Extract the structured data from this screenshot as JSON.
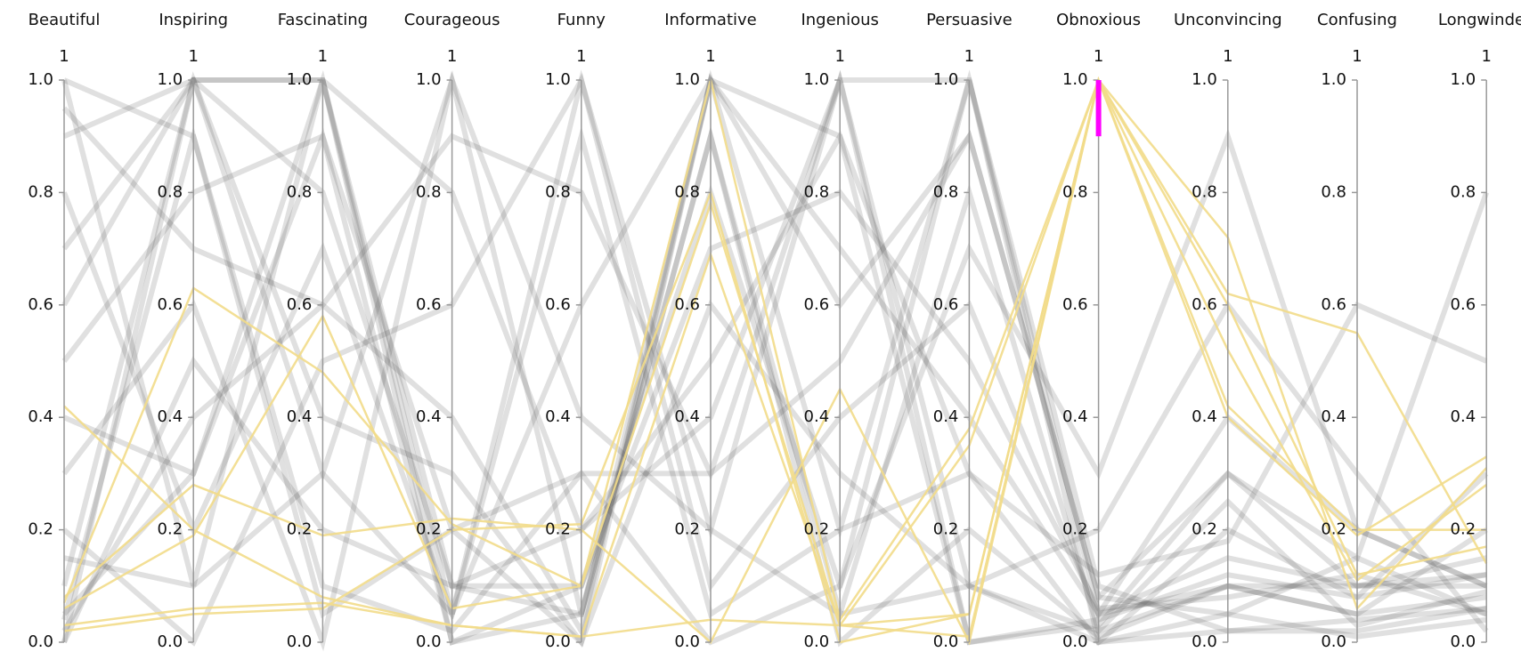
{
  "chart_data": {
    "type": "parallel",
    "dimensions": [
      {
        "name": "Beautiful",
        "top": 1
      },
      {
        "name": "Inspiring",
        "top": 1
      },
      {
        "name": "Fascinating",
        "top": 1
      },
      {
        "name": "Courageous",
        "top": 1
      },
      {
        "name": "Funny",
        "top": 1
      },
      {
        "name": "Informative",
        "top": 1
      },
      {
        "name": "Ingenious",
        "top": 1
      },
      {
        "name": "Persuasive",
        "top": 1
      },
      {
        "name": "Obnoxious",
        "top": 1
      },
      {
        "name": "Unconvincing",
        "top": 1
      },
      {
        "name": "Confusing",
        "top": 1
      },
      {
        "name": "Longwinded",
        "top": 1
      }
    ],
    "ylim": [
      0,
      1
    ],
    "yticks": [
      {
        "value": 0,
        "label": "0.0"
      },
      0.2,
      0.4,
      0.6,
      0.8,
      {
        "value": 1,
        "label": "1.0"
      }
    ],
    "brush": {
      "axis": 8,
      "range": [
        0.9,
        1.0
      ],
      "color": "#ff00ff"
    },
    "context_color": "#555555",
    "highlight_color": "#f2dc8a",
    "context": [
      [
        1.0,
        0.1,
        1.0,
        0.05,
        1.0,
        0.2,
        1.0,
        0.1,
        0.02,
        0.1,
        0.05,
        0.08
      ],
      [
        0.9,
        1.0,
        0.3,
        1.0,
        0.05,
        1.0,
        0.2,
        1.0,
        0.05,
        0.15,
        0.1,
        0.1
      ],
      [
        0.0,
        1.0,
        1.0,
        0.1,
        0.2,
        0.5,
        0.9,
        0.3,
        0.0,
        0.2,
        0.08,
        0.12
      ],
      [
        0.5,
        0.8,
        0.9,
        0.2,
        0.0,
        1.0,
        0.6,
        0.9,
        0.08,
        0.05,
        0.15,
        0.05
      ],
      [
        0.02,
        0.4,
        0.6,
        0.9,
        0.8,
        0.3,
        1.0,
        0.0,
        0.03,
        0.3,
        0.1,
        0.15
      ],
      [
        1.0,
        0.9,
        0.1,
        0.02,
        0.3,
        0.0,
        0.1,
        1.0,
        0.1,
        0.02,
        0.02,
        0.06
      ],
      [
        0.2,
        0.0,
        0.5,
        0.6,
        1.0,
        0.1,
        0.4,
        0.6,
        0.05,
        0.4,
        0.2,
        0.1
      ],
      [
        0.7,
        1.0,
        0.8,
        0.1,
        0.05,
        0.9,
        0.0,
        0.2,
        0.01,
        0.1,
        0.05,
        0.2
      ],
      [
        0.05,
        0.3,
        1.0,
        0.0,
        0.1,
        0.7,
        0.8,
        0.5,
        0.06,
        0.08,
        0.12,
        0.05
      ],
      [
        0.3,
        0.6,
        0.0,
        1.0,
        0.4,
        0.2,
        0.05,
        0.8,
        0.02,
        0.25,
        0.03,
        0.09
      ],
      [
        0.1,
        1.0,
        0.4,
        0.3,
        0.0,
        0.6,
        0.3,
        0.1,
        0.2,
        0.6,
        0.3,
        0.02
      ],
      [
        0.8,
        0.2,
        0.7,
        0.05,
        0.6,
        1.0,
        0.9,
        0.0,
        0.04,
        0.12,
        0.08,
        0.3
      ],
      [
        0.0,
        0.5,
        0.2,
        0.1,
        0.1,
        0.8,
        0.1,
        0.7,
        0.3,
        0.9,
        0.2,
        0.1
      ],
      [
        0.6,
        1.0,
        1.0,
        0.8,
        0.2,
        0.4,
        1.0,
        1.0,
        0.0,
        0.05,
        0.01,
        0.04
      ],
      [
        0.15,
        0.1,
        0.3,
        0.05,
        0.9,
        0.05,
        0.2,
        0.3,
        0.12,
        0.18,
        0.6,
        0.5
      ],
      [
        0.95,
        0.7,
        0.6,
        0.4,
        0.02,
        1.0,
        0.7,
        0.4,
        0.05,
        0.1,
        0.1,
        0.12
      ],
      [
        0.04,
        0.9,
        0.05,
        0.2,
        0.3,
        0.3,
        0.5,
        0.9,
        0.08,
        0.3,
        0.15,
        0.8
      ],
      [
        0.4,
        0.3,
        0.9,
        0.0,
        0.05,
        0.9,
        0.05,
        0.1,
        0.0,
        0.02,
        0.04,
        0.06
      ]
    ],
    "highlighted": [
      [
        0.42,
        0.2,
        0.08,
        0.03,
        0.01,
        0.04,
        0.03,
        0.05,
        1.0,
        0.62,
        0.55,
        0.14
      ],
      [
        0.07,
        0.63,
        0.48,
        0.21,
        0.1,
        0.78,
        0.03,
        0.35,
        1.0,
        0.42,
        0.2,
        0.2
      ],
      [
        0.06,
        0.19,
        0.58,
        0.06,
        0.1,
        1.0,
        0.04,
        0.38,
        1.0,
        0.6,
        0.12,
        0.17
      ],
      [
        0.08,
        0.28,
        0.19,
        0.22,
        0.2,
        0.0,
        0.45,
        0.0,
        1.0,
        0.72,
        0.06,
        0.31
      ],
      [
        0.03,
        0.06,
        0.07,
        0.03,
        0.01,
        0.69,
        0.03,
        0.01,
        1.0,
        0.4,
        0.19,
        0.33
      ],
      [
        0.02,
        0.05,
        0.06,
        0.2,
        0.21,
        0.8,
        0.0,
        0.05,
        1.0,
        0.52,
        0.11,
        0.28
      ]
    ]
  }
}
